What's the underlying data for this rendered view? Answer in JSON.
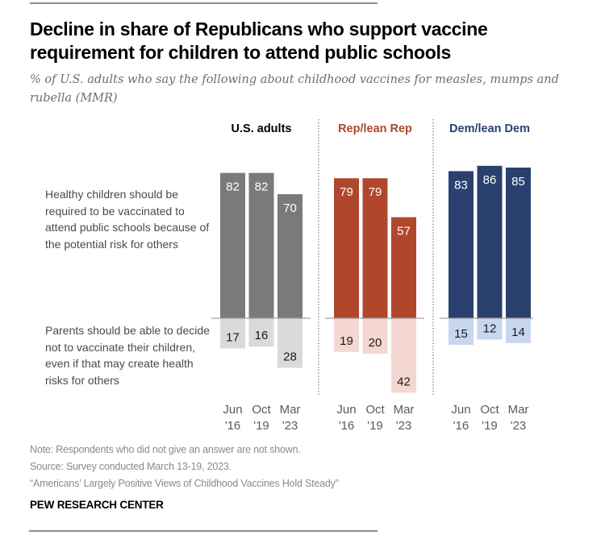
{
  "title": "Decline in share of Republicans who support vaccine requirement for children to attend public schools",
  "subtitle": "% of U.S. adults who say the following about childhood vaccines for measles, mumps and rubella (MMR)",
  "row_labels": {
    "top": "Healthy children should be required to be vaccinated to attend public schools because of the potential risk for others",
    "bottom": "Parents should be able to decide not to vaccinate their children, even if that may create health risks for others"
  },
  "notes": {
    "note": "Note: Respondents who did not give an answer are not shown.",
    "source": "Source: Survey conducted March 13-19, 2023.",
    "report": "“Americans’ Largely Positive Views of Childhood Vaccines Hold Steady”"
  },
  "brand": "PEW RESEARCH CENTER",
  "chart_data": {
    "type": "bar",
    "title": "Decline in share of Republicans who support vaccine requirement for children to attend public schools",
    "subtitle": "% of U.S. adults who say the following about childhood vaccines for measles, mumps and rubella (MMR)",
    "layout": "diverging-stacked-small-multiples",
    "categories": [
      {
        "line1": "Jun",
        "line2": "'16"
      },
      {
        "line1": "Oct",
        "line2": "'19"
      },
      {
        "line1": "Mar",
        "line2": "'23"
      }
    ],
    "measures": [
      "Healthy children should be required to be vaccinated to attend public schools because of the potential risk for others",
      "Parents should be able to decide not to vaccinate their children, even if that may create health risks for others"
    ],
    "groups": [
      {
        "name": "U.S. adults",
        "label_color": "#000000",
        "color_required": "#7a7a7a",
        "color_decide": "#dadada",
        "required": [
          82,
          82,
          70
        ],
        "decide": [
          17,
          16,
          28
        ]
      },
      {
        "name": "Rep/lean Rep",
        "label_color": "#b0472d",
        "color_required": "#b0472d",
        "color_decide": "#f3d7d0",
        "required": [
          79,
          79,
          57
        ],
        "decide": [
          19,
          20,
          42
        ]
      },
      {
        "name": "Dem/lean Dem",
        "label_color": "#2a416f",
        "color_required": "#2a416f",
        "color_decide": "#c8d6ef",
        "required": [
          83,
          86,
          85
        ],
        "decide": [
          15,
          12,
          14
        ]
      }
    ],
    "value_label_color_required": "#ffffff",
    "value_label_color_decide": "#1a1a1a",
    "axis_label_color": "#5a5a5a",
    "baseline_color": "#a0a0a0",
    "separator_color": "#9a9a9a",
    "ylim": [
      -45,
      90
    ],
    "grid": false,
    "legend": "none"
  }
}
